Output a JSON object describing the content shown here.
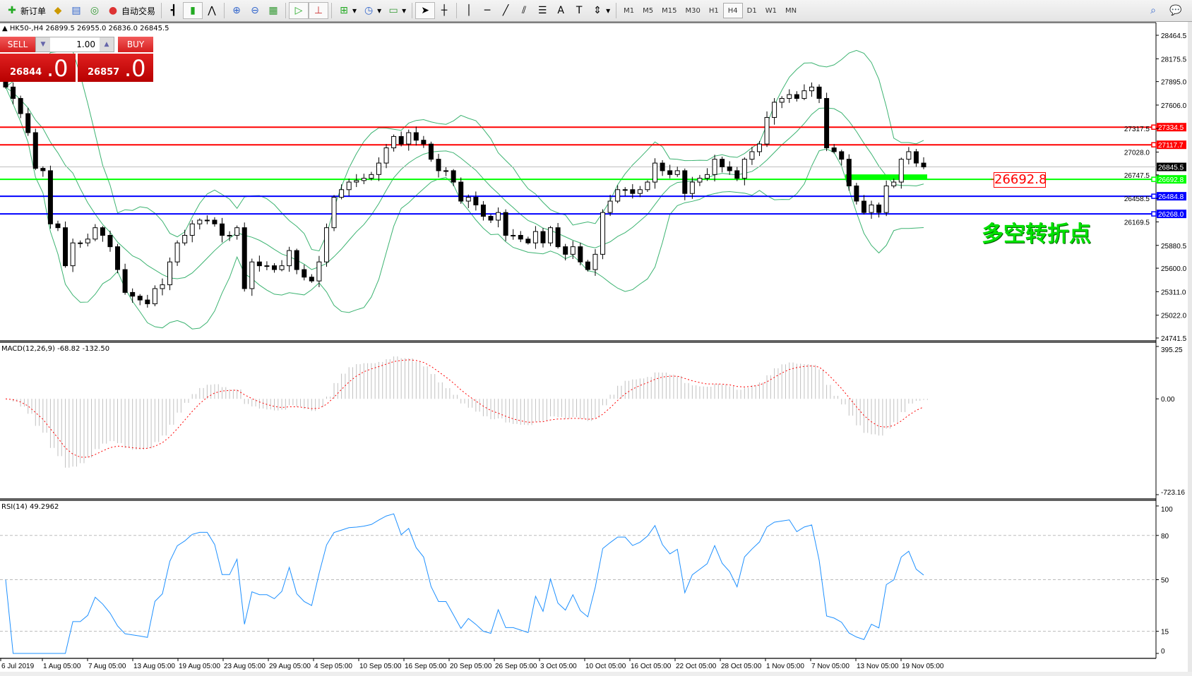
{
  "toolbar": {
    "new_order": "新订单",
    "auto_trading": "自动交易",
    "timeframes": [
      "M1",
      "M5",
      "M15",
      "M30",
      "H1",
      "H4",
      "D1",
      "W1",
      "MN"
    ],
    "active_timeframe": "H4"
  },
  "chart_header": "HK50-,H4  26899.5 26955.0 26836.0 26845.5",
  "trade_panel": {
    "sell": "SELL",
    "buy": "BUY",
    "lot": "1.00",
    "bid_main": "26844",
    "bid_frac": ".0",
    "ask_main": "26857",
    "ask_frac": ".0"
  },
  "macd_label": "MACD(12,26,9) -68.82 -132.50",
  "rsi_label": "RSI(14) 49.2962",
  "annotation_price": "26692.8",
  "annotation_text": "多空转折点",
  "colors": {
    "bull_body": "#ffffff",
    "bear_body": "#000000",
    "bands": "#3cb371",
    "macd_hist": "#c0c0c0",
    "macd_signal": "#ff0000",
    "rsi": "#1e90ff"
  },
  "chart_data": [
    {
      "type": "candlestick",
      "symbol": "HK50-",
      "timeframe": "H4",
      "ylim": [
        24741.5,
        28464.5
      ],
      "y_ticks": [
        "28464.5",
        "28175.5",
        "27895.0",
        "27606.0",
        "27317.5",
        "27028.0",
        "26747.5",
        "26458.5",
        "26169.5",
        "25880.5",
        "25600.0",
        "25311.0",
        "25022.0",
        "24741.5"
      ],
      "x_ticks": [
        "6 Jul 2019",
        "1 Aug 05:00",
        "7 Aug 05:00",
        "13 Aug 05:00",
        "19 Aug 05:00",
        "23 Aug 05:00",
        "29 Aug 05:00",
        "4 Sep 05:00",
        "10 Sep 05:00",
        "16 Sep 05:00",
        "20 Sep 05:00",
        "26 Sep 05:00",
        "3 Oct 05:00",
        "10 Oct 05:00",
        "16 Oct 05:00",
        "22 Oct 05:00",
        "28 Oct 05:00",
        "1 Nov 05:00",
        "7 Nov 05:00",
        "13 Nov 05:00",
        "19 Nov 05:00"
      ],
      "first_open": 27900,
      "closes": [
        27828,
        27688,
        27501,
        27267,
        26828,
        26799,
        26145,
        26098,
        25630,
        25911,
        25911,
        25958,
        26098,
        26004,
        25864,
        25583,
        25302,
        25256,
        25209,
        25162,
        25349,
        25396,
        25677,
        25911,
        26004,
        26145,
        26191,
        26191,
        26145,
        26004,
        26004,
        26098,
        25349,
        25677,
        25630,
        25630,
        25583,
        25630,
        25817,
        25583,
        25490,
        25443,
        25677,
        26098,
        26472,
        26566,
        26659,
        26678,
        26706,
        26752,
        26893,
        27080,
        27220,
        27127,
        27267,
        27174,
        27127,
        26940,
        26799,
        26799,
        26659,
        26425,
        26472,
        26378,
        26238,
        26191,
        26285,
        26004,
        26004,
        25958,
        25911,
        26051,
        25911,
        26098,
        25864,
        25771,
        25864,
        25677,
        25583,
        25771,
        26285,
        26425,
        26566,
        26566,
        26519,
        26566,
        26659,
        26893,
        26799,
        26752,
        26799,
        26519,
        26659,
        26706,
        26752,
        26940,
        26846,
        26799,
        26706,
        26940,
        27033,
        27127,
        27454,
        27641,
        27688,
        27735,
        27688,
        27782,
        27828,
        27688,
        27080,
        27033,
        26940,
        26612,
        26425,
        26285,
        26378,
        26285,
        26612,
        26659,
        26940,
        27033,
        26893,
        26845.5
      ],
      "last_ohlc": {
        "open": 26899.5,
        "high": 26955.0,
        "low": 26836.0,
        "close": 26845.5
      },
      "horizontal_lines": [
        {
          "price": "27334.5",
          "color": "#ff0000"
        },
        {
          "price": "27117.7",
          "color": "#ff0000"
        },
        {
          "price": "26845.5",
          "color": "#c0c0c0",
          "label_bg": "#000000"
        },
        {
          "price": "26692.8",
          "color": "#00ff00"
        },
        {
          "price": "26484.8",
          "color": "#0000ff"
        },
        {
          "price": "26268.0",
          "color": "#0000ff"
        }
      ],
      "indicators": [
        "Bollinger Bands"
      ]
    },
    {
      "type": "bar+line",
      "name": "MACD(12,26,9)",
      "ylim": [
        -723.16,
        395.25
      ],
      "y_ticks": [
        "395.25",
        "0.00",
        "-723.16"
      ],
      "main": -68.82,
      "signal": -132.5
    },
    {
      "type": "line",
      "name": "RSI(14)",
      "ylim": [
        0,
        100
      ],
      "y_ticks": [
        "100",
        "80",
        "50",
        "15",
        "0"
      ],
      "levels": [
        80,
        50,
        15
      ],
      "last": 49.2962
    }
  ]
}
